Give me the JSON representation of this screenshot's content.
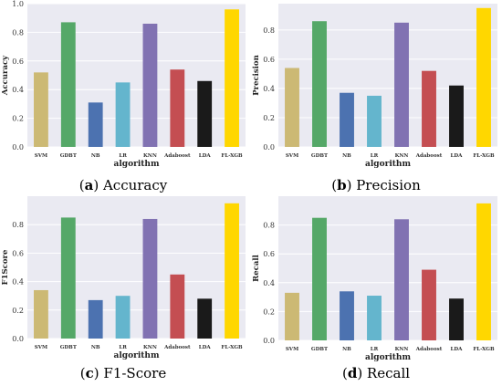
{
  "categories": [
    "SVM",
    "GDBT",
    "NB",
    "LR",
    "KNN",
    "Adaboost",
    "LDA",
    "FL-XGB"
  ],
  "bar_colors": [
    "#ccb974",
    "#55a868",
    "#4c72b0",
    "#64b5cd",
    "#8172b2",
    "#c44e52",
    "#1a1a1a",
    "#ffd700"
  ],
  "chart_data": [
    {
      "type": "bar",
      "ylabel": "Accuracy",
      "xlabel": "algorithm",
      "caption_letter": "(a)",
      "caption_text": " Accuracy",
      "categories": [
        "SVM",
        "GDBT",
        "NB",
        "LR",
        "KNN",
        "Adaboost",
        "LDA",
        "FL-XGB"
      ],
      "values": [
        0.52,
        0.87,
        0.31,
        0.45,
        0.86,
        0.54,
        0.46,
        0.96
      ],
      "ylim": [
        0,
        1.0
      ],
      "yticks": [
        "0.0",
        "0.2",
        "0.4",
        "0.6",
        "0.8",
        "1.0"
      ],
      "ytick_values": [
        0,
        0.2,
        0.4,
        0.6,
        0.8,
        1.0
      ],
      "grid": true
    },
    {
      "type": "bar",
      "ylabel": "Precision",
      "xlabel": "algorithm",
      "caption_letter": "(b)",
      "caption_text": " Precision",
      "categories": [
        "SVM",
        "GDBT",
        "NB",
        "LR",
        "KNN",
        "Adaboost",
        "LDA",
        "FL-XGB"
      ],
      "values": [
        0.54,
        0.86,
        0.37,
        0.35,
        0.85,
        0.52,
        0.42,
        0.95
      ],
      "ylim": [
        0,
        0.98
      ],
      "yticks": [
        "0.0",
        "0.2",
        "0.4",
        "0.6",
        "0.8"
      ],
      "ytick_values": [
        0,
        0.2,
        0.4,
        0.6,
        0.8
      ],
      "grid": true
    },
    {
      "type": "bar",
      "ylabel": "F1Score",
      "xlabel": "algorithm",
      "caption_letter": "(c)",
      "caption_text": " F1-Score",
      "categories": [
        "SVM",
        "GDBT",
        "NB",
        "LR",
        "KNN",
        "Adaboost",
        "LDA",
        "FL-XGB"
      ],
      "values": [
        0.34,
        0.85,
        0.27,
        0.3,
        0.84,
        0.45,
        0.28,
        0.95
      ],
      "ylim": [
        0,
        1.0
      ],
      "yticks": [
        "0.0",
        "0.2",
        "0.4",
        "0.6",
        "0.8"
      ],
      "ytick_values": [
        0,
        0.2,
        0.4,
        0.6,
        0.8
      ],
      "grid": true
    },
    {
      "type": "bar",
      "ylabel": "Recall",
      "xlabel": "algorithm",
      "caption_letter": "(d)",
      "caption_text": " Recall",
      "categories": [
        "SVM",
        "GDBT",
        "NB",
        "LR",
        "KNN",
        "Adaboost",
        "LDA",
        "FL-XGB"
      ],
      "values": [
        0.33,
        0.85,
        0.34,
        0.31,
        0.84,
        0.49,
        0.29,
        0.95
      ],
      "ylim": [
        0,
        1.0
      ],
      "yticks": [
        "0.0",
        "0.2",
        "0.4",
        "0.6",
        "0.8"
      ],
      "ytick_values": [
        0,
        0.2,
        0.4,
        0.6,
        0.8
      ],
      "grid": true
    }
  ]
}
